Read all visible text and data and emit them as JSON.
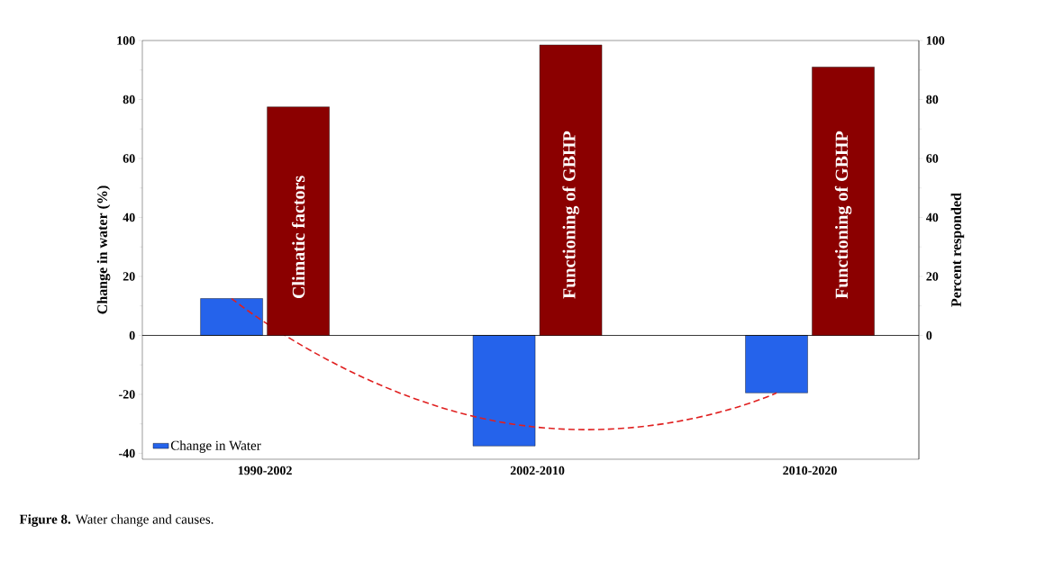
{
  "chart_data": {
    "type": "bar",
    "categories": [
      "1990-2002",
      "2002-2010",
      "2010-2020"
    ],
    "ylabel": "Change in water (%)",
    "y2label": "Percent responded",
    "ylim": [
      -42,
      100
    ],
    "yticks": [
      -40,
      -20,
      0,
      20,
      40,
      60,
      80,
      100
    ],
    "y2lim": [
      -42,
      100
    ],
    "y2ticks": [
      0,
      20,
      40,
      60,
      80,
      100
    ],
    "series": [
      {
        "name": "Change in Water",
        "color": "#2563eb",
        "values": [
          12.5,
          -37.5,
          -19.5
        ]
      },
      {
        "color": "#8b0000",
        "axis": "y2",
        "values": [
          77.5,
          98.5,
          91
        ],
        "value_labels": [
          "Climatic factors",
          "Functioning of GBHP",
          "Functioning of GBHP"
        ]
      },
      {
        "type": "line",
        "color": "#e02020",
        "line_style": "dashed",
        "marker": "none",
        "values": [
          12.5,
          -29.6,
          -19.5
        ]
      }
    ],
    "ref_lines": [
      {
        "axis": "y",
        "value": 0,
        "color": "#000000"
      }
    ],
    "legend": "bottom left",
    "grid": false,
    "annotations": [
      "**Figure 8.** Water change and causes."
    ]
  }
}
